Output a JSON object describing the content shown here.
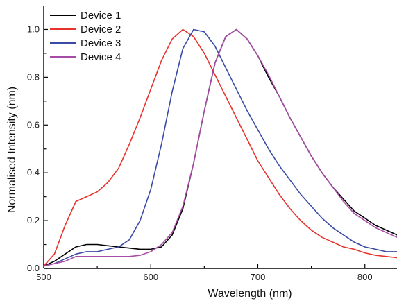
{
  "chart_data": {
    "type": "line",
    "title": "",
    "xlabel": "Wavelength (nm)",
    "ylabel": "Normalised Intensity (nm)",
    "xlim": [
      500,
      830
    ],
    "ylim": [
      0,
      1.1
    ],
    "xticks": [
      500,
      600,
      700,
      800
    ],
    "yticks": [
      0.0,
      0.2,
      0.4,
      0.6,
      0.8,
      1.0
    ],
    "ytick_labels": [
      "0.0",
      "0.2",
      "0.4",
      "0.6",
      "0.8",
      "1.0"
    ],
    "legend_position": "top-left",
    "grid": false,
    "series": [
      {
        "name": "Device 1",
        "color": "#000000",
        "x": [
          500,
          510,
          520,
          530,
          540,
          550,
          560,
          570,
          580,
          590,
          600,
          610,
          620,
          630,
          640,
          650,
          660,
          670,
          680,
          690,
          700,
          710,
          720,
          730,
          740,
          750,
          760,
          770,
          780,
          790,
          800,
          810,
          820,
          830
        ],
        "y": [
          0.01,
          0.03,
          0.06,
          0.09,
          0.1,
          0.1,
          0.095,
          0.09,
          0.085,
          0.08,
          0.08,
          0.09,
          0.14,
          0.25,
          0.44,
          0.66,
          0.86,
          0.97,
          1.0,
          0.96,
          0.89,
          0.8,
          0.72,
          0.63,
          0.55,
          0.47,
          0.4,
          0.34,
          0.29,
          0.24,
          0.21,
          0.18,
          0.16,
          0.14
        ]
      },
      {
        "name": "Device 2",
        "color": "#e8322b",
        "x": [
          500,
          510,
          520,
          530,
          540,
          550,
          560,
          570,
          580,
          590,
          600,
          610,
          620,
          630,
          640,
          650,
          660,
          670,
          680,
          690,
          700,
          710,
          720,
          730,
          740,
          750,
          760,
          770,
          780,
          790,
          800,
          810,
          820,
          830
        ],
        "y": [
          0.01,
          0.06,
          0.18,
          0.28,
          0.3,
          0.32,
          0.36,
          0.42,
          0.52,
          0.63,
          0.75,
          0.87,
          0.96,
          1.0,
          0.97,
          0.9,
          0.81,
          0.72,
          0.63,
          0.54,
          0.45,
          0.38,
          0.31,
          0.25,
          0.2,
          0.16,
          0.13,
          0.11,
          0.09,
          0.08,
          0.065,
          0.055,
          0.05,
          0.045
        ]
      },
      {
        "name": "Device 3",
        "color": "#3a4ba6",
        "x": [
          500,
          510,
          520,
          530,
          540,
          550,
          560,
          570,
          580,
          590,
          600,
          610,
          620,
          630,
          640,
          650,
          660,
          670,
          680,
          690,
          700,
          710,
          720,
          730,
          740,
          750,
          760,
          770,
          780,
          790,
          800,
          810,
          820,
          830
        ],
        "y": [
          0.01,
          0.02,
          0.04,
          0.06,
          0.07,
          0.07,
          0.08,
          0.09,
          0.12,
          0.2,
          0.33,
          0.52,
          0.74,
          0.92,
          1.0,
          0.99,
          0.93,
          0.84,
          0.75,
          0.66,
          0.58,
          0.5,
          0.43,
          0.37,
          0.31,
          0.26,
          0.21,
          0.17,
          0.14,
          0.11,
          0.09,
          0.08,
          0.07,
          0.07
        ]
      },
      {
        "name": "Device 4",
        "color": "#a64ca6",
        "x": [
          500,
          510,
          520,
          530,
          540,
          550,
          560,
          570,
          580,
          590,
          600,
          610,
          620,
          630,
          640,
          650,
          660,
          670,
          680,
          690,
          700,
          710,
          720,
          730,
          740,
          750,
          760,
          770,
          780,
          790,
          800,
          810,
          820,
          830
        ],
        "y": [
          0.01,
          0.02,
          0.03,
          0.05,
          0.05,
          0.05,
          0.05,
          0.05,
          0.05,
          0.055,
          0.07,
          0.1,
          0.15,
          0.26,
          0.44,
          0.66,
          0.86,
          0.97,
          1.0,
          0.96,
          0.89,
          0.81,
          0.72,
          0.63,
          0.55,
          0.47,
          0.4,
          0.34,
          0.28,
          0.23,
          0.2,
          0.17,
          0.15,
          0.13
        ]
      }
    ]
  }
}
